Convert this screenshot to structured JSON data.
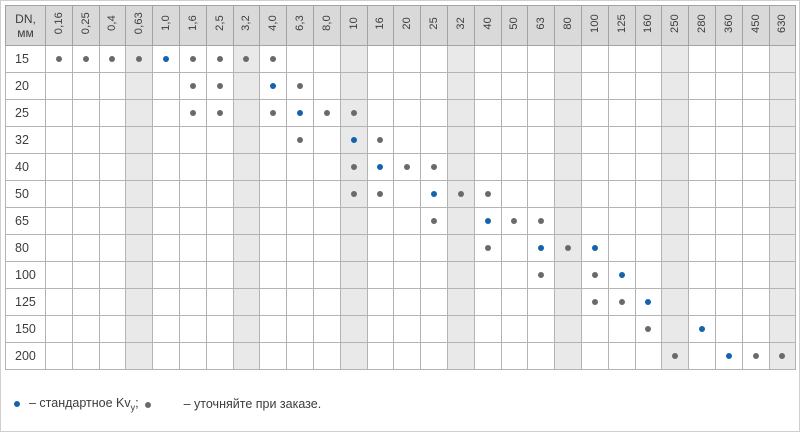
{
  "table": {
    "corner": {
      "line1": "DN,",
      "line2": "мм"
    },
    "columns": [
      "0,16",
      "0,25",
      "0,4",
      "0,63",
      "1,0",
      "1,6",
      "2,5",
      "3,2",
      "4,0",
      "6,3",
      "8,0",
      "10",
      "16",
      "20",
      "25",
      "32",
      "40",
      "50",
      "63",
      "80",
      "100",
      "125",
      "160",
      "250",
      "280",
      "360",
      "450",
      "630"
    ],
    "shaded_column_indices": [
      3,
      7,
      11,
      15,
      19,
      23,
      27
    ],
    "rows": [
      {
        "dn": "15",
        "dots": {
          "0,16": "req",
          "0,25": "req",
          "0,4": "req",
          "0,63": "req",
          "1,0": "std",
          "1,6": "req",
          "2,5": "req",
          "3,2": "req",
          "4,0": "req"
        }
      },
      {
        "dn": "20",
        "dots": {
          "1,6": "req",
          "2,5": "req",
          "4,0": "std",
          "6,3": "req"
        }
      },
      {
        "dn": "25",
        "dots": {
          "1,6": "req",
          "2,5": "req",
          "4,0": "req",
          "6,3": "std",
          "8,0": "req",
          "10": "req"
        }
      },
      {
        "dn": "32",
        "dots": {
          "6,3": "req",
          "10": "std",
          "16": "req"
        }
      },
      {
        "dn": "40",
        "dots": {
          "10": "req",
          "16": "std",
          "20": "req",
          "25": "req"
        }
      },
      {
        "dn": "50",
        "dots": {
          "10": "req",
          "16": "req",
          "25": "std",
          "32": "req",
          "40": "req"
        }
      },
      {
        "dn": "65",
        "dots": {
          "25": "req",
          "40": "std",
          "50": "req",
          "63": "req"
        }
      },
      {
        "dn": "80",
        "dots": {
          "40": "req",
          "63": "std",
          "80": "req",
          "100": "std"
        }
      },
      {
        "dn": "100",
        "dots": {
          "63": "req",
          "100": "req",
          "125": "std"
        }
      },
      {
        "dn": "125",
        "dots": {
          "100": "req",
          "125": "req",
          "160": "std"
        }
      },
      {
        "dn": "150",
        "dots": {
          "160": "req",
          "280": "std"
        }
      },
      {
        "dn": "200",
        "dots": {
          "250": "req",
          "360": "std",
          "450": "req",
          "630": "req"
        }
      }
    ]
  },
  "legend": {
    "std_text": "– стандартное Kv",
    "std_sub": "у",
    "std_end": ";",
    "req_text": "– уточняйте при заказе."
  },
  "colors": {
    "standard_dot": "#1463ac",
    "on_request_dot": "#6a6a6a",
    "header_bg": "#d9d9d9",
    "shaded_column_bg": "#e9e9e9",
    "grid_border": "#b3b3b3"
  }
}
